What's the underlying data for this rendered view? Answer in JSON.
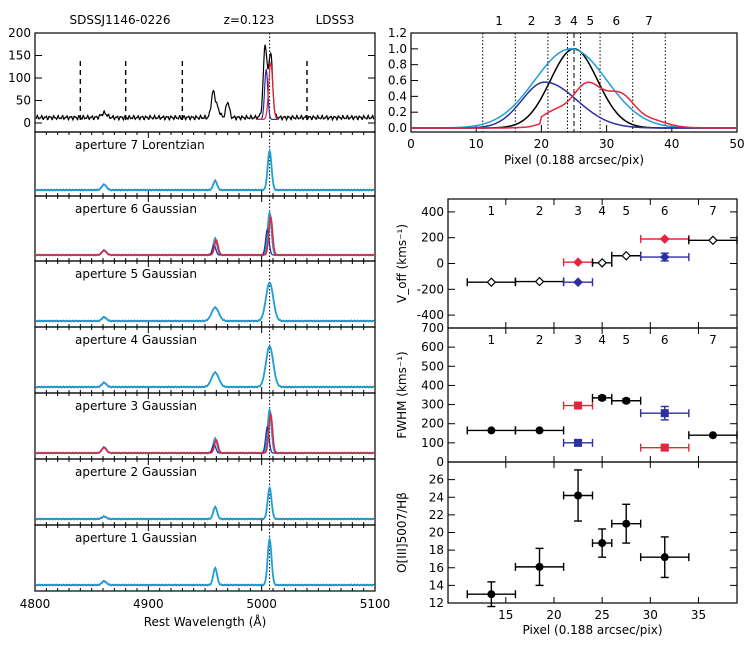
{
  "colors": {
    "black": "#000000",
    "cyan": "#1f9fd6",
    "red": "#e8243a",
    "blue": "#2b2fa0",
    "axis": "#000000"
  },
  "chart_data": [
    {
      "id": "spectra",
      "type": "line",
      "title_left": "SDSSJ1146-0226",
      "title_mid": "z=0.123",
      "title_right": "LDSS3",
      "xlabel": "Rest Wavelength (Å)",
      "xlim": [
        4800,
        5100
      ],
      "xticks": [
        4800,
        4900,
        5000,
        5100
      ],
      "top_panel": {
        "ylim": [
          -20,
          200
        ],
        "yticks": [
          0,
          50,
          100,
          150,
          200
        ],
        "dashed_lines": [
          4840,
          4880,
          4930,
          5040
        ],
        "dotted_line": 5007
      },
      "panels": [
        {
          "label": "aperture 7  Lorentzian",
          "ap": 7
        },
        {
          "label": "aperture 6  Gaussian",
          "ap": 6
        },
        {
          "label": "aperture 5  Gaussian",
          "ap": 5
        },
        {
          "label": "aperture 4  Gaussian",
          "ap": 4
        },
        {
          "label": "aperture 3  Gaussian",
          "ap": 3
        },
        {
          "label": "aperture 2  Gaussian",
          "ap": 2
        },
        {
          "label": "aperture 1  Gaussian",
          "ap": 1
        }
      ]
    },
    {
      "id": "profile",
      "type": "line",
      "xlabel": "Pixel (0.188 arcsec/pix)",
      "xlim": [
        0,
        50
      ],
      "ylim": [
        -0.05,
        1.2
      ],
      "xticks": [
        0,
        10,
        20,
        30,
        40,
        50
      ],
      "yticks": [
        0.0,
        0.2,
        0.4,
        0.6,
        0.8,
        1.0,
        1.2
      ],
      "aperture_numbers": [
        "1",
        "2",
        "3",
        "4",
        "5",
        "6",
        "7"
      ],
      "aperture_centers": [
        13.5,
        18.5,
        22.5,
        25,
        27.5,
        31.5,
        36.5
      ],
      "dotted_boundaries": [
        11,
        16,
        21,
        24,
        26,
        29,
        34,
        39
      ],
      "series": [
        {
          "name": "total",
          "color": "black",
          "center": 25,
          "sigma": 3.6,
          "amp": 1.0
        },
        {
          "name": "cyan",
          "color": "cyan",
          "center": 24.5,
          "sigma": 5.5,
          "amp": 1.0
        },
        {
          "name": "blue",
          "color": "blue",
          "center": 20.5,
          "sigma": 4.5,
          "amp": 0.58
        },
        {
          "name": "red",
          "color": "red",
          "center": 28.5,
          "sigma": 5.0,
          "amp": 0.55
        }
      ]
    },
    {
      "id": "voff",
      "type": "scatter",
      "ylabel": "V_off (kms⁻¹)",
      "xlim": [
        9,
        39
      ],
      "ylim": [
        -500,
        500
      ],
      "yticks": [
        -400,
        -200,
        0,
        200,
        400
      ],
      "aperture_numbers": [
        "1",
        "2",
        "3",
        "4",
        "5",
        "6",
        "7"
      ],
      "aperture_positions": [
        13.5,
        18.5,
        22.5,
        25,
        27.5,
        31.5,
        36.5
      ],
      "points": [
        {
          "x": 13.5,
          "y": -145,
          "xerr_lo": 11,
          "xerr_hi": 16,
          "yerr": 0,
          "color": "black"
        },
        {
          "x": 18.5,
          "y": -140,
          "xerr_lo": 16,
          "xerr_hi": 21,
          "yerr": 0,
          "color": "black"
        },
        {
          "x": 22.5,
          "y": -145,
          "xerr_lo": 21,
          "xerr_hi": 24,
          "yerr": 0,
          "color": "blue"
        },
        {
          "x": 22.5,
          "y": 10,
          "xerr_lo": 21,
          "xerr_hi": 24,
          "yerr": 0,
          "color": "red"
        },
        {
          "x": 25,
          "y": 5,
          "xerr_lo": 24,
          "xerr_hi": 26,
          "yerr": 0,
          "color": "black"
        },
        {
          "x": 27.5,
          "y": 60,
          "xerr_lo": 26,
          "xerr_hi": 29,
          "yerr": 0,
          "color": "black"
        },
        {
          "x": 31.5,
          "y": 50,
          "xerr_lo": 29,
          "xerr_hi": 34,
          "yerr": 30,
          "color": "blue"
        },
        {
          "x": 31.5,
          "y": 190,
          "xerr_lo": 29,
          "xerr_hi": 34,
          "yerr": 0,
          "color": "red"
        },
        {
          "x": 36.5,
          "y": 180,
          "xerr_lo": 34,
          "xerr_hi": 39,
          "yerr": 0,
          "color": "black"
        }
      ]
    },
    {
      "id": "fwhm",
      "type": "scatter",
      "ylabel": "FWHM (kms⁻¹)",
      "xlim": [
        9,
        39
      ],
      "ylim": [
        0,
        700
      ],
      "yticks": [
        0,
        100,
        200,
        300,
        400,
        500,
        600,
        700
      ],
      "aperture_numbers": [
        "1",
        "2",
        "3",
        "4",
        "5",
        "6",
        "7"
      ],
      "aperture_positions": [
        13.5,
        18.5,
        22.5,
        25,
        27.5,
        31.5,
        36.5
      ],
      "points": [
        {
          "x": 13.5,
          "y": 165,
          "xerr_lo": 11,
          "xerr_hi": 16,
          "yerr": 0,
          "color": "black"
        },
        {
          "x": 18.5,
          "y": 165,
          "xerr_lo": 16,
          "xerr_hi": 21,
          "yerr": 0,
          "color": "black"
        },
        {
          "x": 22.5,
          "y": 295,
          "xerr_lo": 21,
          "xerr_hi": 24,
          "yerr": 15,
          "color": "red"
        },
        {
          "x": 22.5,
          "y": 100,
          "xerr_lo": 21,
          "xerr_hi": 24,
          "yerr": 15,
          "color": "blue"
        },
        {
          "x": 25,
          "y": 335,
          "xerr_lo": 24,
          "xerr_hi": 26,
          "yerr": 10,
          "color": "black"
        },
        {
          "x": 27.5,
          "y": 320,
          "xerr_lo": 26,
          "xerr_hi": 29,
          "yerr": 10,
          "color": "black"
        },
        {
          "x": 31.5,
          "y": 255,
          "xerr_lo": 29,
          "xerr_hi": 34,
          "yerr": 35,
          "color": "blue"
        },
        {
          "x": 31.5,
          "y": 75,
          "xerr_lo": 29,
          "xerr_hi": 34,
          "yerr": 10,
          "color": "red"
        },
        {
          "x": 36.5,
          "y": 140,
          "xerr_lo": 34,
          "xerr_hi": 39,
          "yerr": 0,
          "color": "black"
        }
      ]
    },
    {
      "id": "ratio",
      "type": "scatter",
      "ylabel": "O[III]5007/Hβ",
      "xlabel": "Pixel (0.188 arcsec/pix)",
      "xlim": [
        9,
        39
      ],
      "ylim": [
        12,
        28
      ],
      "xticks": [
        15,
        20,
        25,
        30,
        35
      ],
      "yticks": [
        12,
        14,
        16,
        18,
        20,
        22,
        24,
        26
      ],
      "points": [
        {
          "x": 13.5,
          "y": 13.0,
          "xerr_lo": 11,
          "xerr_hi": 16,
          "yerr": 1.4,
          "color": "black"
        },
        {
          "x": 18.5,
          "y": 16.1,
          "xerr_lo": 16,
          "xerr_hi": 21,
          "yerr": 2.1,
          "color": "black"
        },
        {
          "x": 22.5,
          "y": 24.2,
          "xerr_lo": 21,
          "xerr_hi": 24,
          "yerr": 2.9,
          "color": "black"
        },
        {
          "x": 25,
          "y": 18.8,
          "xerr_lo": 24,
          "xerr_hi": 26,
          "yerr": 1.6,
          "color": "black"
        },
        {
          "x": 27.5,
          "y": 21.0,
          "xerr_lo": 26,
          "xerr_hi": 29,
          "yerr": 2.2,
          "color": "black"
        },
        {
          "x": 31.5,
          "y": 17.2,
          "xerr_lo": 29,
          "xerr_hi": 34,
          "yerr": 2.3,
          "color": "black"
        }
      ]
    }
  ]
}
